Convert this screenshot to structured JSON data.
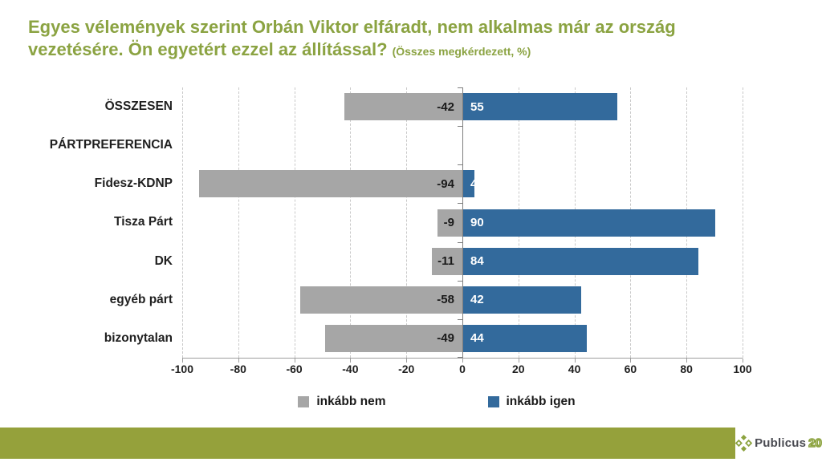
{
  "title": {
    "line1": "Egyes vélemények szerint Orbán Viktor elfáradt, nem alkalmas már az ország",
    "line2": "vezetésére. Ön egyetért ezzel az állítással?",
    "suffix": "(Összes megkérdezett, %)",
    "color": "#8BA342"
  },
  "chart_data": {
    "type": "bar",
    "orientation": "horizontal-diverging",
    "categories": [
      "ÖSSZESEN",
      "PÁRTPREFERENCIA",
      "Fidesz-KDNP",
      "Tisza Párt",
      "DK",
      "egyéb párt",
      "bizonytalan"
    ],
    "series": [
      {
        "name": "inkább nem",
        "color": "#A6A6A6",
        "values": [
          -42,
          null,
          -94,
          -9,
          -11,
          -58,
          -49
        ]
      },
      {
        "name": "inkább igen",
        "color": "#336A9C",
        "values": [
          55,
          null,
          4,
          90,
          84,
          42,
          44
        ]
      }
    ],
    "xlim": [
      -100,
      100
    ],
    "xticks": [
      -100,
      -80,
      -60,
      -40,
      -20,
      0,
      20,
      40,
      60,
      80,
      100
    ],
    "grid": "vertical-dashed",
    "legend_position": "bottom",
    "value_labels": "flanking-zero-axis"
  },
  "footer": {
    "bar_color": "#95A13B",
    "brand": "Publicus",
    "badge": "20"
  },
  "colors": {
    "negative_bar": "#A6A6A6",
    "positive_bar": "#336A9C",
    "zero_axis": "#7F7F7F",
    "bottom_axis": "#9E9E9E",
    "gridline": "#C9C9C9",
    "text": "#1F1F1F"
  }
}
